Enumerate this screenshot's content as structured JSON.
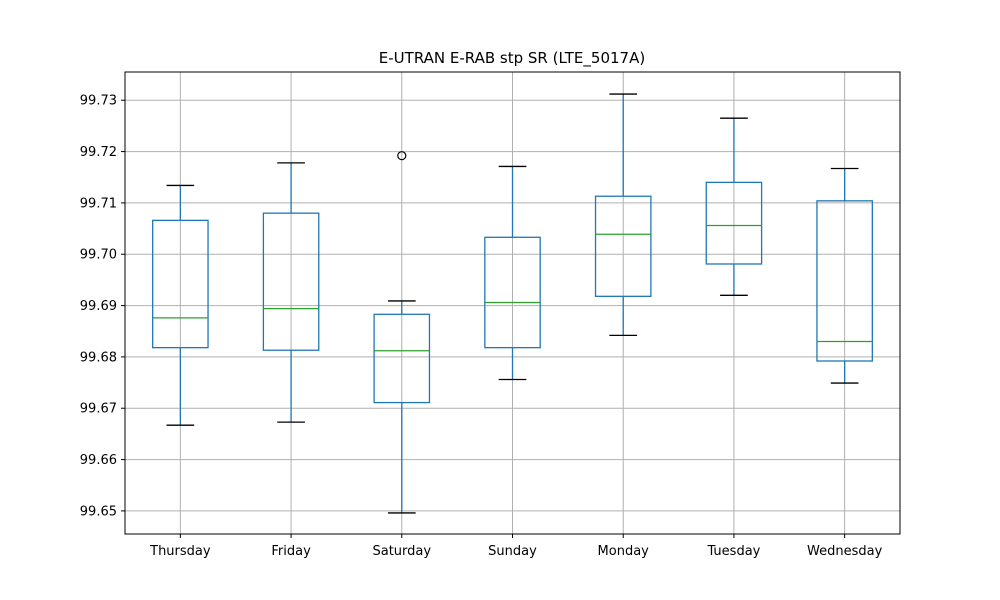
{
  "chart_data": {
    "type": "boxplot",
    "title": "E-UTRAN E-RAB stp SR (LTE_5017A)",
    "xlabel": "",
    "ylabel": "",
    "ylim": [
      99.6455,
      99.7355
    ],
    "yticks": [
      99.65,
      99.66,
      99.67,
      99.68,
      99.69,
      99.7,
      99.71,
      99.72,
      99.73
    ],
    "ytick_labels": [
      "99.65",
      "99.66",
      "99.67",
      "99.68",
      "99.69",
      "99.70",
      "99.71",
      "99.72",
      "99.73"
    ],
    "grid": true,
    "categories": [
      "Thursday",
      "Friday",
      "Saturday",
      "Sunday",
      "Monday",
      "Tuesday",
      "Wednesday"
    ],
    "boxes": [
      {
        "label": "Thursday",
        "whislo": 99.6667,
        "q1": 99.6818,
        "med": 99.6876,
        "q3": 99.7066,
        "whishi": 99.7134,
        "fliers": []
      },
      {
        "label": "Friday",
        "whislo": 99.6673,
        "q1": 99.6813,
        "med": 99.6894,
        "q3": 99.708,
        "whishi": 99.7178,
        "fliers": []
      },
      {
        "label": "Saturday",
        "whislo": 99.6496,
        "q1": 99.6711,
        "med": 99.6812,
        "q3": 99.6883,
        "whishi": 99.6909,
        "fliers": [
          99.7192
        ]
      },
      {
        "label": "Sunday",
        "whislo": 99.6756,
        "q1": 99.6818,
        "med": 99.6906,
        "q3": 99.7033,
        "whishi": 99.7171,
        "fliers": []
      },
      {
        "label": "Monday",
        "whislo": 99.6842,
        "q1": 99.6918,
        "med": 99.7039,
        "q3": 99.7113,
        "whishi": 99.7312,
        "fliers": []
      },
      {
        "label": "Tuesday",
        "whislo": 99.692,
        "q1": 99.6981,
        "med": 99.7056,
        "q3": 99.714,
        "whishi": 99.7265,
        "fliers": []
      },
      {
        "label": "Wednesday",
        "whislo": 99.6749,
        "q1": 99.6792,
        "med": 99.683,
        "q3": 99.7104,
        "whishi": 99.7167,
        "fliers": []
      }
    ]
  }
}
